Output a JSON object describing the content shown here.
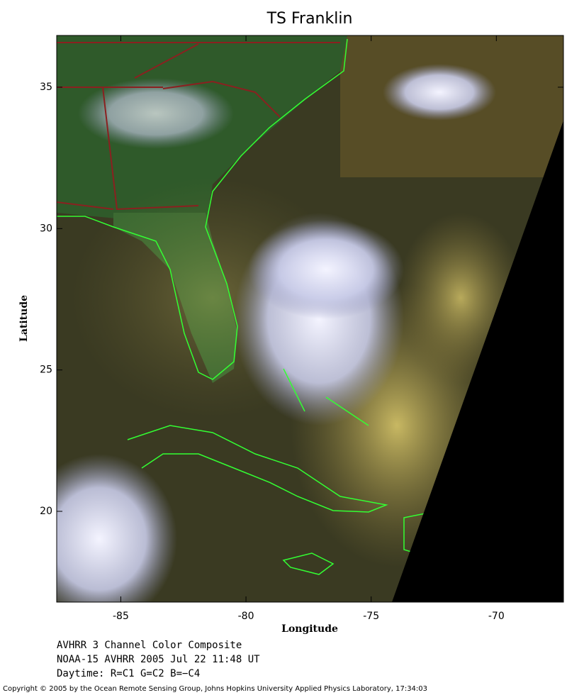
{
  "map": {
    "title": "TS Franklin",
    "xlabel": "Longitude",
    "ylabel": "Latitude",
    "xlim": [
      -87.56,
      -67.32
    ],
    "ylim": [
      16.79,
      36.83
    ],
    "xticks": [
      -85,
      -80,
      -75,
      -70
    ],
    "yticks": [
      20,
      25,
      30,
      35
    ]
  },
  "caption": [
    "AVHRR 3 Channel Color Composite",
    "NOAA-15 AVHRR 2005 Jul 22 11:48 UT",
    "Daytime: R=C1 G=C2 B=−C4"
  ],
  "copyright": "Copyright © 2005 by the Ocean Remote Sensing Group, Johns Hopkins University Applied Physics Laboratory, 17:34:03"
}
